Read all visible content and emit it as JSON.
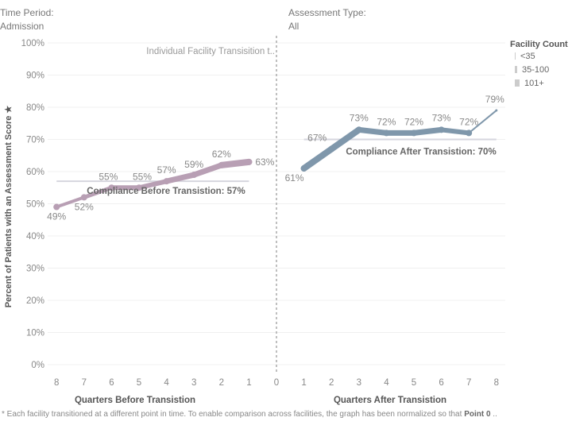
{
  "filters": {
    "time_period_label": "Time Period:",
    "time_period_value": "Admission",
    "assessment_type_label": "Assessment Type:",
    "assessment_type_value": "All"
  },
  "legend": {
    "title": "Facility Count",
    "items": [
      "<35",
      "35-100",
      "101+"
    ]
  },
  "footnote": {
    "text": "* Each facility transitioned at a different point in time. To enable comparison across facilities, the graph has been normalized so that ",
    "bold": "Point 0",
    "ellipsis": " .."
  },
  "chart_data": {
    "type": "line",
    "ylabel": "Percent of Patients with an Assessment Score ★",
    "ylim": [
      0,
      100
    ],
    "yticks": [
      "0%",
      "10%",
      "20%",
      "30%",
      "40%",
      "50%",
      "60%",
      "70%",
      "80%",
      "90%",
      "100%"
    ],
    "grid": true,
    "legend_placement": "right",
    "divider_label": "Individual Facility Transisition t..",
    "divider_tick": "0",
    "panels": [
      {
        "xlabel": "Quarters Before Transistion",
        "x": [
          8,
          7,
          6,
          5,
          4,
          3,
          2,
          1
        ],
        "values": [
          49,
          52,
          55,
          55,
          57,
          59,
          62,
          63
        ],
        "labels": [
          "49%",
          "52%",
          "55%",
          "55%",
          "57%",
          "59%",
          "62%",
          "63%"
        ],
        "color": "#b89fb4",
        "reference": {
          "value": 57,
          "label": "Compliance  Before Transistion: 57%"
        }
      },
      {
        "xlabel": "Quarters After Transistion",
        "x": [
          1,
          2,
          3,
          4,
          5,
          6,
          7,
          8
        ],
        "values": [
          61,
          67,
          73,
          72,
          72,
          73,
          72,
          79
        ],
        "labels": [
          "61%",
          "67%",
          "73%",
          "72%",
          "72%",
          "73%",
          "72%",
          "79%"
        ],
        "color": "#7f97ab",
        "reference": {
          "value": 70,
          "label": "Compliance  After Transistion: 70%"
        }
      }
    ]
  }
}
